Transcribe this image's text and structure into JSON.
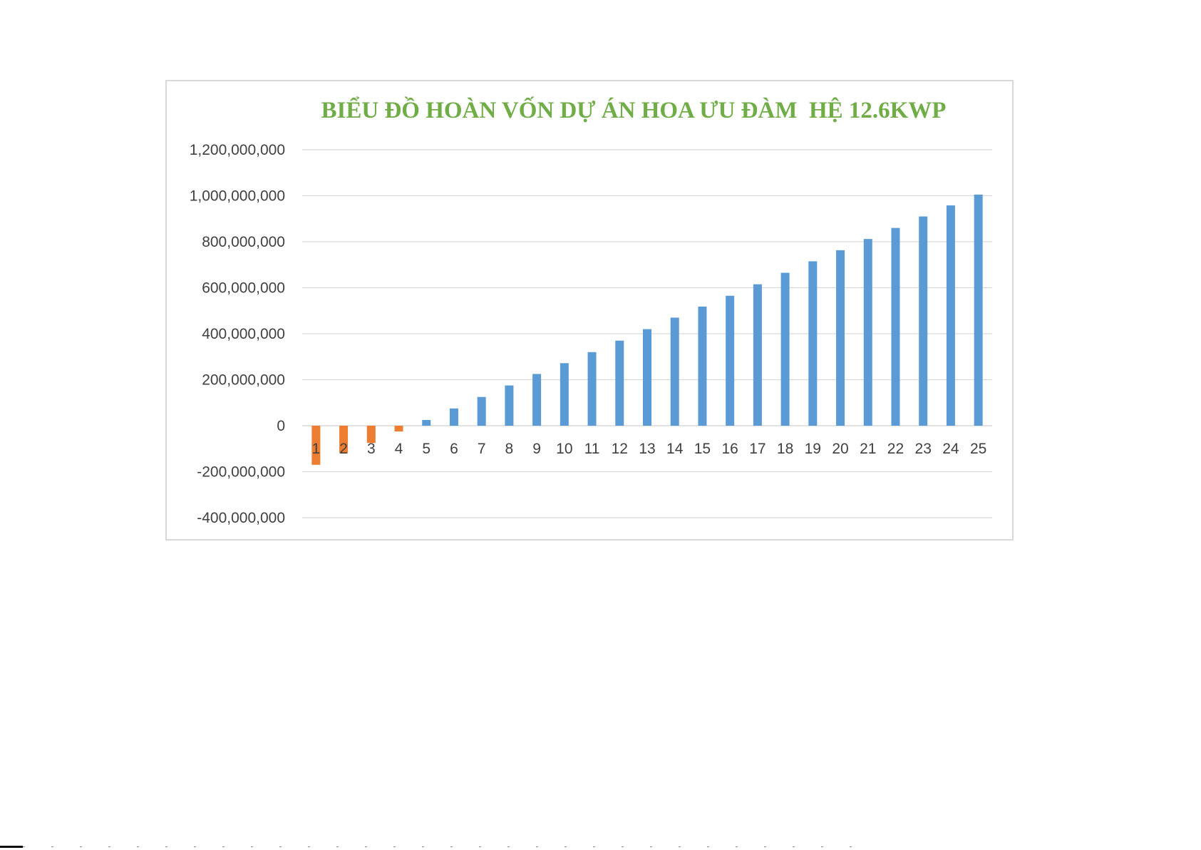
{
  "chart_data": {
    "type": "bar",
    "title": "BIỂU ĐỒ HOÀN VỐN DỰ ÁN HOA ƯU ĐÀM  HỆ 12.6KWP",
    "xlabel": "",
    "ylabel": "",
    "categories": [
      "1",
      "2",
      "3",
      "4",
      "5",
      "6",
      "7",
      "8",
      "9",
      "10",
      "11",
      "12",
      "13",
      "14",
      "15",
      "16",
      "17",
      "18",
      "19",
      "20",
      "21",
      "22",
      "23",
      "24",
      "25"
    ],
    "values": [
      -170000000,
      -120000000,
      -75000000,
      -25000000,
      25000000,
      75000000,
      125000000,
      175000000,
      225000000,
      272000000,
      320000000,
      370000000,
      420000000,
      470000000,
      518000000,
      565000000,
      615000000,
      665000000,
      715000000,
      763000000,
      812000000,
      860000000,
      910000000,
      958000000,
      1005000000
    ],
    "ylim": [
      -400000000,
      1200000000
    ],
    "yticks": [
      1200000000,
      1000000000,
      800000000,
      600000000,
      400000000,
      200000000,
      0,
      -200000000,
      -400000000
    ],
    "ytick_labels": [
      "1,200,000,000",
      "1,000,000,000",
      "800,000,000",
      "600,000,000",
      "400,000,000",
      "200,000,000",
      "0",
      "-200,000,000",
      "-400,000,000"
    ],
    "grid": true,
    "legend": "none",
    "colors": {
      "positive": "#5b9bd5",
      "negative": "#ed7d31",
      "title": "#70ad47",
      "grid": "#d9d9d9",
      "axis_text": "#404040"
    }
  }
}
